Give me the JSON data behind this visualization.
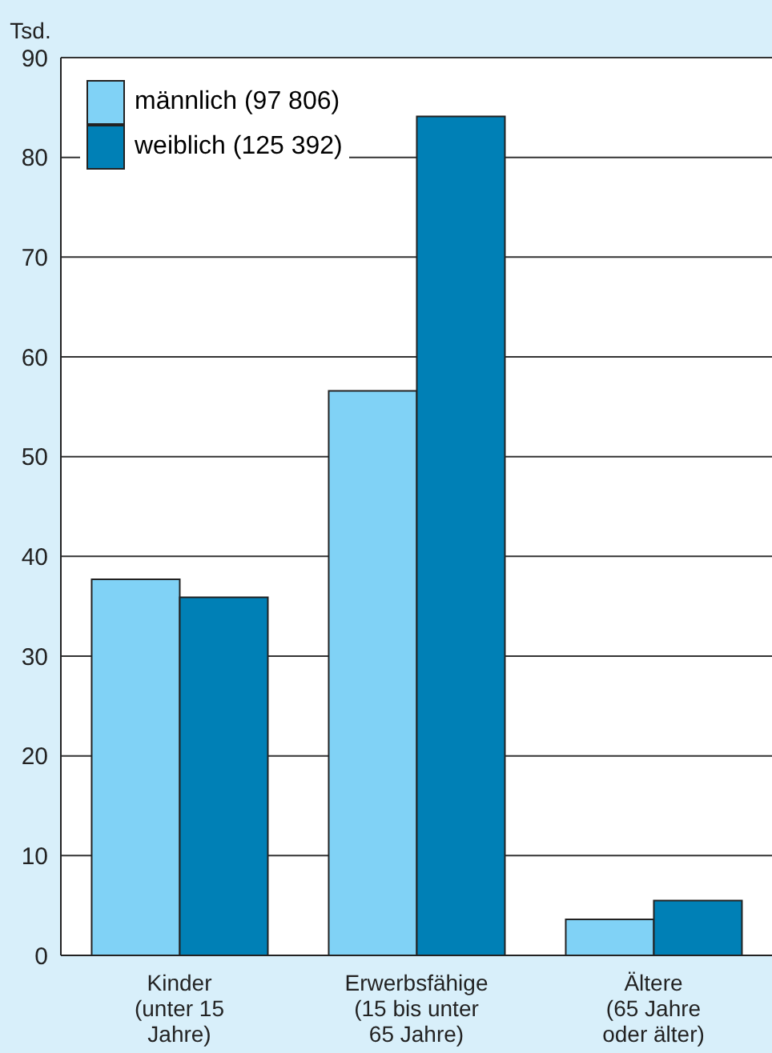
{
  "chart_data": {
    "type": "bar",
    "ylabel": "Tsd.",
    "categories": [
      "Kinder\n(unter 15\nJahre)",
      "Erwerbsfähige\n(15 bis unter\n65 Jahre)",
      "Ältere\n(65 Jahre\noder älter)"
    ],
    "series": [
      {
        "name": "männlich (97 806)",
        "color": "#80d2f6",
        "values": [
          37.7,
          56.6,
          3.6
        ]
      },
      {
        "name": "weiblich (125 392)",
        "color": "#0080b6",
        "values": [
          35.9,
          84.1,
          5.5
        ]
      }
    ],
    "ylim": [
      0,
      90
    ],
    "yticks": [
      0,
      10,
      20,
      30,
      40,
      50,
      60,
      70,
      80,
      90
    ],
    "grid": "y",
    "legend": "top left"
  }
}
